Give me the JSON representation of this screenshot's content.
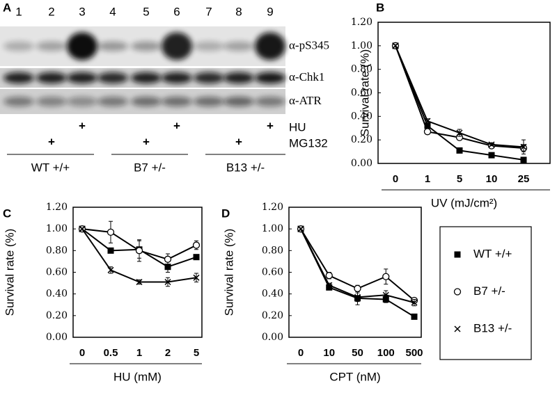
{
  "blot": {
    "panel": "A",
    "lanes": [
      "1",
      "2",
      "3",
      "4",
      "5",
      "6",
      "7",
      "8",
      "9"
    ],
    "bands": [
      "α-pS345",
      "α-Chk1",
      "α-ATR"
    ],
    "treatments": [
      {
        "name": "HU",
        "marks": [
          "+",
          "+",
          "+"
        ]
      },
      {
        "name": "MG132",
        "marks": [
          "+",
          "+",
          "+"
        ]
      }
    ],
    "groups": [
      "WT +/+",
      "B7 +/-",
      "B13 +/-"
    ]
  },
  "chart_data": [
    {
      "type": "line",
      "panel": "B",
      "ylabel": "Survival rate (%)",
      "xlabel": "UV (mJ/cm²)",
      "categories": [
        "0",
        "1",
        "5",
        "10",
        "25"
      ],
      "ylim": [
        0,
        1.2
      ],
      "yticks": [
        {
          "value": 0,
          "label": "0.00"
        },
        {
          "value": 0.2,
          "label": "0.20"
        },
        {
          "value": 0.4,
          "label": "0.40"
        },
        {
          "value": 0.6,
          "label": "0.60"
        },
        {
          "value": 0.8,
          "label": "0.80"
        },
        {
          "value": 1.0,
          "label": "1.00"
        },
        {
          "value": 1.2,
          "label": "1.20"
        }
      ],
      "series": [
        {
          "name": "WT +/+",
          "marker": "square",
          "color": "#000000",
          "values": [
            1.0,
            0.32,
            0.11,
            0.07,
            0.03
          ],
          "errors": [
            0.01,
            0.02,
            0.01,
            0.01,
            0.01
          ]
        },
        {
          "name": "B7 +/-",
          "marker": "circle",
          "color": "#000000",
          "values": [
            1.0,
            0.27,
            0.22,
            0.15,
            0.13
          ],
          "errors": [
            0.01,
            0.02,
            0.02,
            0.01,
            0.03
          ]
        },
        {
          "name": "B13 +/-",
          "marker": "x",
          "color": "#000000",
          "values": [
            1.0,
            0.36,
            0.26,
            0.16,
            0.14
          ],
          "errors": [
            0.01,
            0.02,
            0.03,
            0.01,
            0.06
          ]
        }
      ]
    },
    {
      "type": "line",
      "panel": "C",
      "ylabel": "Survival rate (%)",
      "xlabel": "HU (mM)",
      "categories": [
        "0",
        "0.5",
        "1",
        "2",
        "5"
      ],
      "ylim": [
        0,
        1.2
      ],
      "yticks": [
        {
          "value": 0,
          "label": "0.00"
        },
        {
          "value": 0.2,
          "label": "0.20"
        },
        {
          "value": 0.4,
          "label": "0.40"
        },
        {
          "value": 0.6,
          "label": "0.60"
        },
        {
          "value": 0.8,
          "label": "0.80"
        },
        {
          "value": 1.0,
          "label": "1.00"
        },
        {
          "value": 1.2,
          "label": "1.20"
        }
      ],
      "series": [
        {
          "marker": "square",
          "color": "#000000",
          "values": [
            1.0,
            0.8,
            0.81,
            0.65,
            0.74
          ],
          "errors": [
            0.01,
            0.02,
            0.08,
            0.05,
            0.02
          ]
        },
        {
          "marker": "circle",
          "color": "#000000",
          "values": [
            1.0,
            0.97,
            0.8,
            0.72,
            0.85
          ],
          "errors": [
            0.01,
            0.1,
            0.1,
            0.05,
            0.04
          ]
        },
        {
          "marker": "x",
          "color": "#000000",
          "values": [
            1.0,
            0.62,
            0.51,
            0.51,
            0.55
          ],
          "errors": [
            0.01,
            0.03,
            0.02,
            0.04,
            0.04
          ]
        }
      ]
    },
    {
      "type": "line",
      "panel": "D",
      "ylabel": "Survival rate (%)",
      "xlabel": "CPT (nM)",
      "categories": [
        "0",
        "10",
        "50",
        "100",
        "500"
      ],
      "ylim": [
        0,
        1.2
      ],
      "yticks": [
        {
          "value": 0,
          "label": "0.00"
        },
        {
          "value": 0.2,
          "label": "0.20"
        },
        {
          "value": 0.4,
          "label": "0.40"
        },
        {
          "value": 0.6,
          "label": "0.60"
        },
        {
          "value": 0.8,
          "label": "0.80"
        },
        {
          "value": 1.0,
          "label": "1.00"
        },
        {
          "value": 1.2,
          "label": "1.20"
        }
      ],
      "series": [
        {
          "marker": "square",
          "color": "#000000",
          "values": [
            1.0,
            0.46,
            0.36,
            0.35,
            0.19
          ],
          "errors": [
            0.01,
            0.02,
            0.06,
            0.03,
            0.01
          ]
        },
        {
          "marker": "circle",
          "color": "#000000",
          "values": [
            1.0,
            0.57,
            0.45,
            0.56,
            0.34
          ],
          "errors": [
            0.01,
            0.03,
            0.03,
            0.07,
            0.02
          ]
        },
        {
          "marker": "x",
          "color": "#000000",
          "values": [
            1.0,
            0.48,
            0.37,
            0.39,
            0.32
          ],
          "errors": [
            0.01,
            0.02,
            0.04,
            0.04,
            0.03
          ]
        }
      ]
    }
  ]
}
